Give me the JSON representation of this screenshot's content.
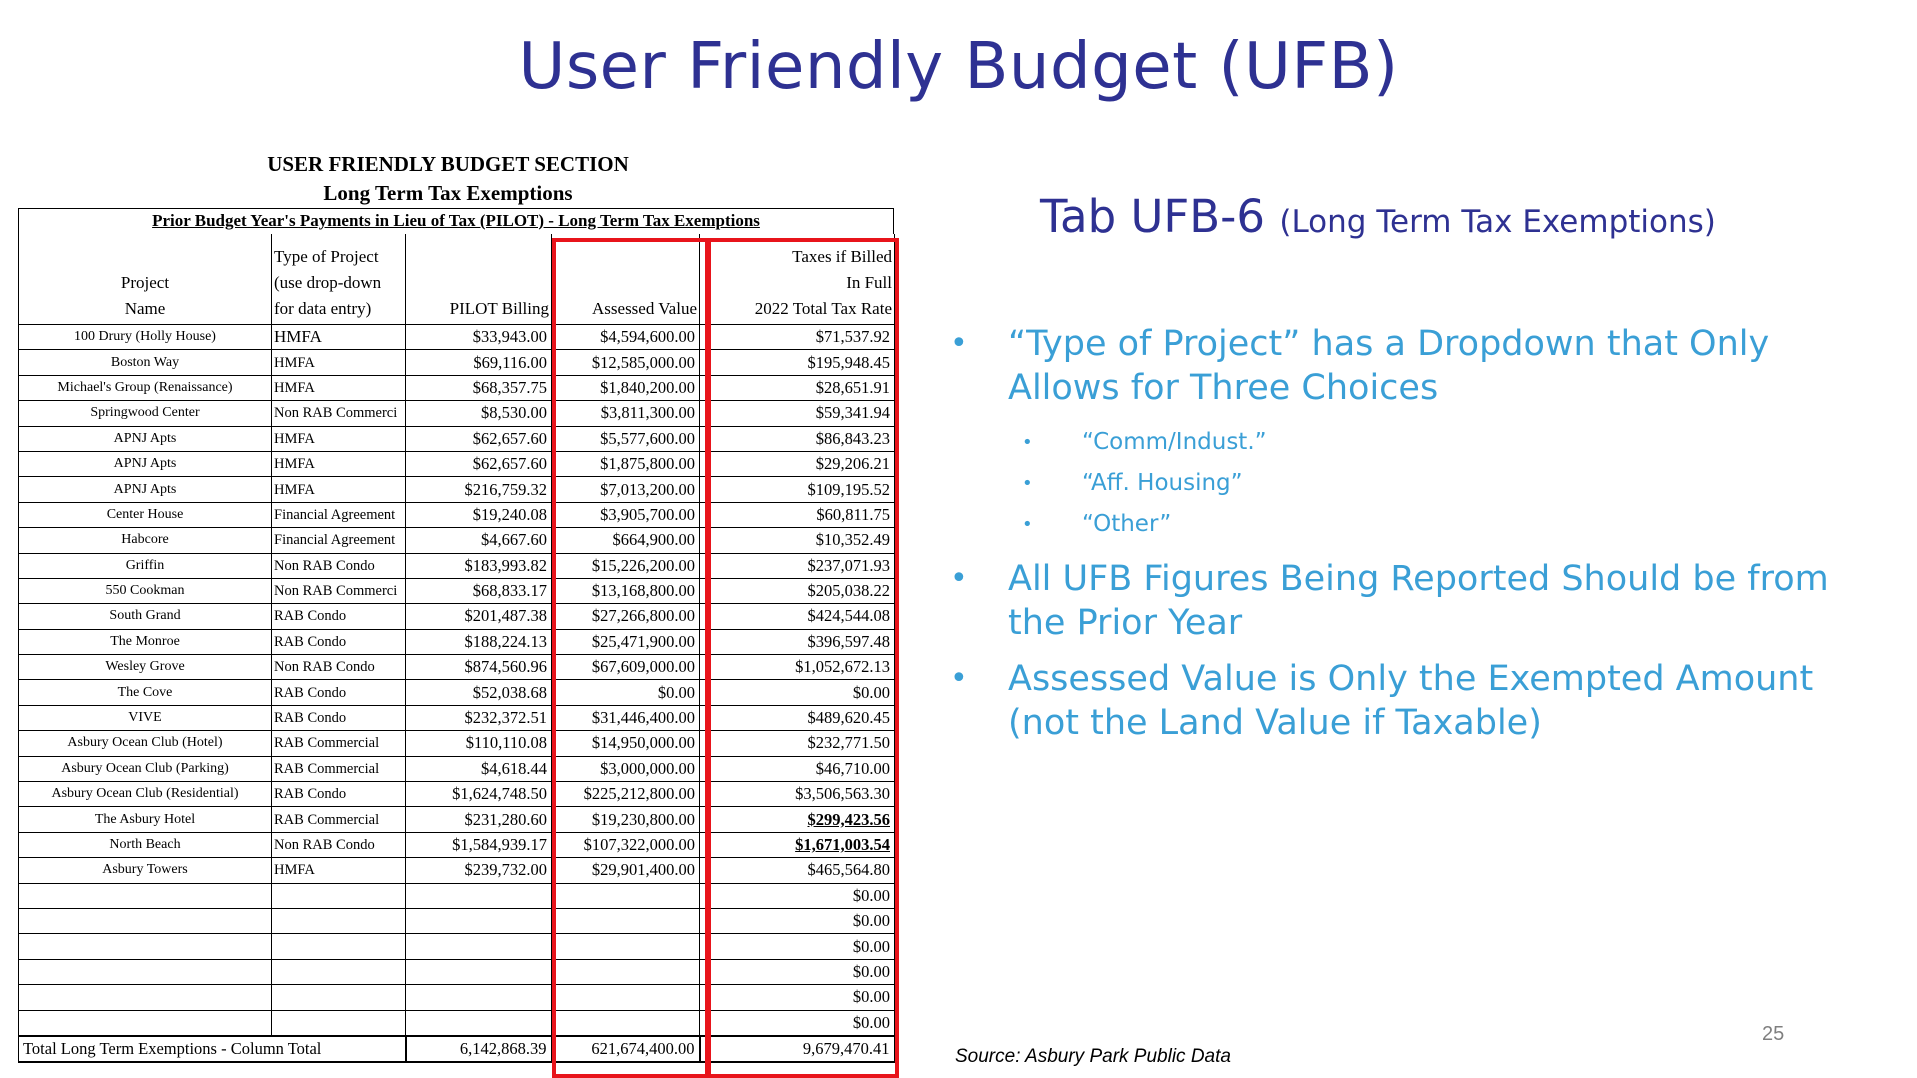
{
  "slide": {
    "title": "User Friendly Budget (UFB)",
    "page_number": "25",
    "source": "Source: Asbury Park Public Data"
  },
  "colors": {
    "title": "#2e3192",
    "bullets": "#3a9fd6",
    "highlight": "#e8141b"
  },
  "document": {
    "heading1": "USER FRIENDLY BUDGET SECTION",
    "heading2": "Long Term Tax Exemptions",
    "banner": "Prior Budget Year's Payments in Lieu of Tax (PILOT) - Long Term Tax Exemptions",
    "columns": {
      "project_a": "Project",
      "project_b": "Name",
      "type_a": "Type of Project",
      "type_b": "(use drop-down",
      "type_c": "for data entry)",
      "pilot": "PILOT Billing",
      "assessed": "Assessed Value",
      "taxes_a": "Taxes if Billed",
      "taxes_b": "In Full",
      "taxes_c": "2022 Total Tax Rate"
    },
    "rows": [
      {
        "name": "100 Drury (Holly House)",
        "type": "HMFA",
        "pilot": "$33,943.00",
        "assessed": "$4,594,600.00",
        "taxes": "$71,537.92"
      },
      {
        "name": "Boston Way",
        "type": "HMFA",
        "pilot": "$69,116.00",
        "assessed": "$12,585,000.00",
        "taxes": "$195,948.45"
      },
      {
        "name": "Michael's Group (Renaissance)",
        "type": "HMFA",
        "pilot": "$68,357.75",
        "assessed": "$1,840,200.00",
        "taxes": "$28,651.91"
      },
      {
        "name": "Springwood Center",
        "type": "Non RAB Commerci",
        "pilot": "$8,530.00",
        "assessed": "$3,811,300.00",
        "taxes": "$59,341.94"
      },
      {
        "name": "APNJ Apts",
        "type": "HMFA",
        "pilot": "$62,657.60",
        "assessed": "$5,577,600.00",
        "taxes": "$86,843.23"
      },
      {
        "name": "APNJ Apts",
        "type": "HMFA",
        "pilot": "$62,657.60",
        "assessed": "$1,875,800.00",
        "taxes": "$29,206.21"
      },
      {
        "name": "APNJ Apts",
        "type": "HMFA",
        "pilot": "$216,759.32",
        "assessed": "$7,013,200.00",
        "taxes": "$109,195.52"
      },
      {
        "name": "Center House",
        "type": "Financial Agreement",
        "pilot": "$19,240.08",
        "assessed": "$3,905,700.00",
        "taxes": "$60,811.75"
      },
      {
        "name": "Habcore",
        "type": "Financial Agreement",
        "pilot": "$4,667.60",
        "assessed": "$664,900.00",
        "taxes": "$10,352.49"
      },
      {
        "name": "Griffin",
        "type": "Non RAB Condo",
        "pilot": "$183,993.82",
        "assessed": "$15,226,200.00",
        "taxes": "$237,071.93"
      },
      {
        "name": "550 Cookman",
        "type": "Non RAB Commerci",
        "pilot": "$68,833.17",
        "assessed": "$13,168,800.00",
        "taxes": "$205,038.22"
      },
      {
        "name": "South Grand",
        "type": "RAB Condo",
        "pilot": "$201,487.38",
        "assessed": "$27,266,800.00",
        "taxes": "$424,544.08"
      },
      {
        "name": "The Monroe",
        "type": "RAB Condo",
        "pilot": "$188,224.13",
        "assessed": "$25,471,900.00",
        "taxes": "$396,597.48"
      },
      {
        "name": "Wesley Grove",
        "type": "Non RAB Condo",
        "pilot": "$874,560.96",
        "assessed": "$67,609,000.00",
        "taxes": "$1,052,672.13"
      },
      {
        "name": "The Cove",
        "type": "RAB Condo",
        "pilot": "$52,038.68",
        "assessed": "$0.00",
        "taxes": "$0.00"
      },
      {
        "name": "VIVE",
        "type": "RAB Condo",
        "pilot": "$232,372.51",
        "assessed": "$31,446,400.00",
        "taxes": "$489,620.45"
      },
      {
        "name": "Asbury Ocean Club (Hotel)",
        "type": "RAB Commercial",
        "pilot": "$110,110.08",
        "assessed": "$14,950,000.00",
        "taxes": "$232,771.50"
      },
      {
        "name": "Asbury Ocean Club (Parking)",
        "type": "RAB Commercial",
        "pilot": "$4,618.44",
        "assessed": "$3,000,000.00",
        "taxes": "$46,710.00"
      },
      {
        "name": "Asbury Ocean Club (Residential)",
        "type": "RAB Condo",
        "pilot": "$1,624,748.50",
        "assessed": "$225,212,800.00",
        "taxes": "$3,506,563.30"
      },
      {
        "name": "The Asbury Hotel",
        "type": "RAB Commercial",
        "pilot": "$231,280.60",
        "assessed": "$19,230,800.00",
        "taxes": "$299,423.56"
      },
      {
        "name": "North Beach",
        "type": "Non RAB Condo",
        "pilot": "$1,584,939.17",
        "assessed": "$107,322,000.00",
        "taxes": "$1,671,003.54"
      },
      {
        "name": "Asbury Towers",
        "type": "HMFA",
        "pilot": "$239,732.00",
        "assessed": "$29,901,400.00",
        "taxes": "$465,564.80"
      },
      {
        "name": "",
        "type": "",
        "pilot": "",
        "assessed": "",
        "taxes": "$0.00"
      },
      {
        "name": "",
        "type": "",
        "pilot": "",
        "assessed": "",
        "taxes": "$0.00"
      },
      {
        "name": "",
        "type": "",
        "pilot": "",
        "assessed": "",
        "taxes": "$0.00"
      },
      {
        "name": "",
        "type": "",
        "pilot": "",
        "assessed": "",
        "taxes": "$0.00"
      },
      {
        "name": "",
        "type": "",
        "pilot": "",
        "assessed": "",
        "taxes": "$0.00"
      },
      {
        "name": "",
        "type": "",
        "pilot": "",
        "assessed": "",
        "taxes": "$0.00"
      }
    ],
    "total": {
      "label": "Total Long Term Exemptions - Column Total",
      "pilot": "6,142,868.39",
      "assessed": "621,674,400.00",
      "taxes": "9,679,470.41"
    }
  },
  "right": {
    "tab_main": "Tab UFB-6",
    "tab_sub": "(Long Term Tax Exemptions)",
    "bullet_glyph": "•",
    "bullet1": "“Type of Project” has a Dropdown that Only Allows for Three Choices",
    "choices": [
      "“Comm/Indust.”",
      "“Aff. Housing”",
      "“Other”"
    ],
    "bullet2": "All UFB Figures Being Reported Should be from the Prior Year",
    "bullet3": "Assessed Value is Only the Exempted Amount (not the Land Value if Taxable)"
  }
}
